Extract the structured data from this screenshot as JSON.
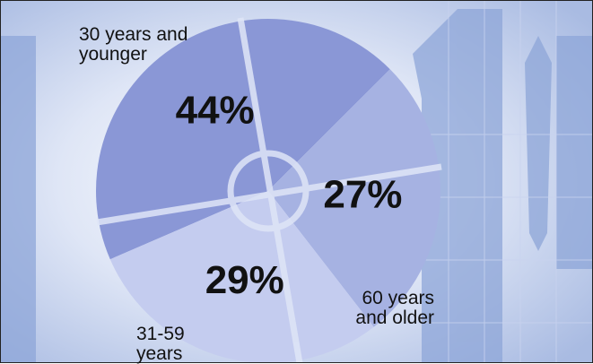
{
  "chart_data": {
    "type": "pie",
    "categories": [
      "30 years and younger",
      "60 years and older",
      "31-59 years"
    ],
    "values": [
      44,
      27,
      29
    ],
    "value_labels": [
      "44%",
      "27%",
      "29%"
    ],
    "colors": [
      "#8a97d6",
      "#a6b2e2",
      "#c4ccef"
    ]
  }
}
